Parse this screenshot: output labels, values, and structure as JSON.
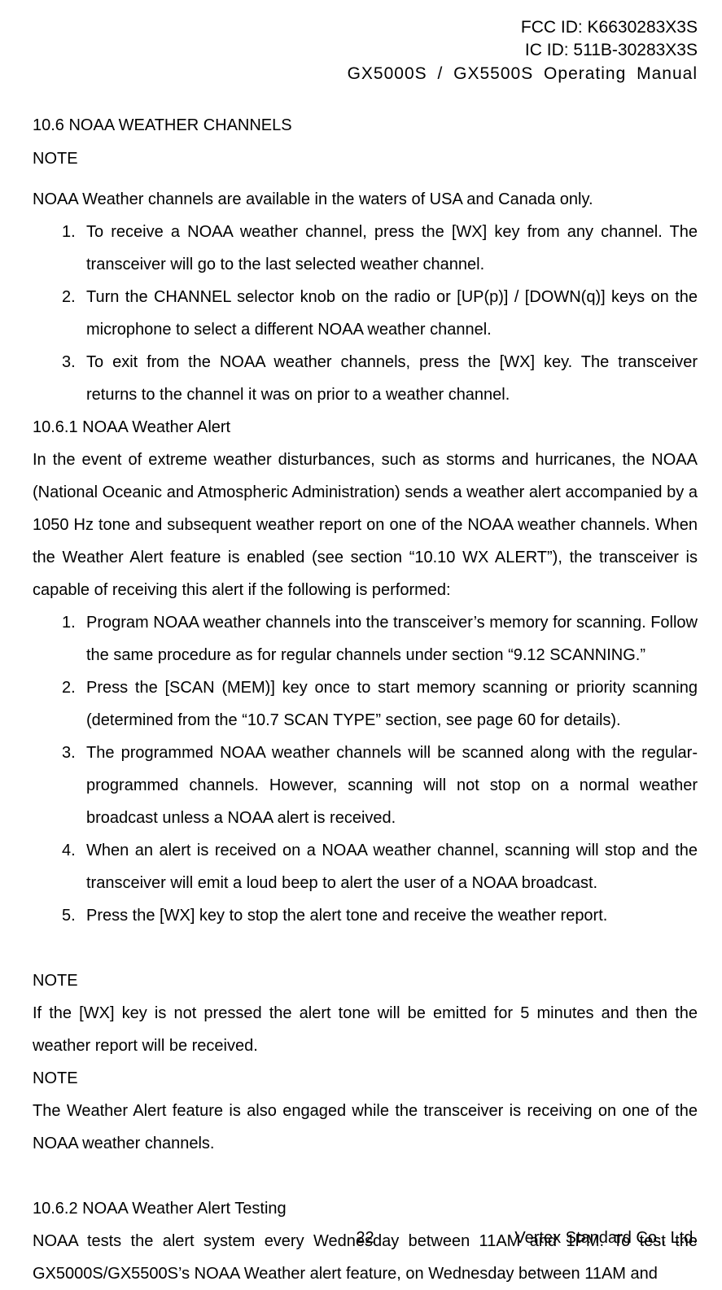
{
  "header": {
    "fcc_id": "FCC ID: K6630283X3S",
    "ic_id": "IC ID: 511B-30283X3S",
    "manual_title": "GX5000S  /  GX5500S    Operating  Manual"
  },
  "section": {
    "number_title": "10.6 NOAA WEATHER CHANNELS",
    "note1_label": "NOTE",
    "note1_text": "NOAA Weather channels are available in the waters of USA and Canada only.",
    "list1": {
      "items": [
        {
          "num": "1.",
          "text": "To receive a NOAA weather channel, press the [WX] key from any channel. The transceiver will go to the last selected weather channel."
        },
        {
          "num": "2.",
          "text": "Turn the CHANNEL selector knob on the radio or [UP(p)] / [DOWN(q)] keys on the microphone to select a different NOAA weather channel."
        },
        {
          "num": "3.",
          "text": "To exit from the NOAA weather channels, press the [WX] key. The transceiver returns to the channel it was on prior to a weather channel."
        }
      ]
    },
    "sub1_title": "10.6.1 NOAA Weather Alert",
    "sub1_para": "In the event of extreme weather disturbances, such as storms and hurricanes, the NOAA (National Oceanic and Atmospheric Administration) sends a weather alert accompanied by a 1050 Hz tone and subsequent weather report on one of the NOAA weather channels. When the Weather Alert feature is enabled (see section “10.10 WX ALERT”), the transceiver is capable of receiving this alert if the following is performed:",
    "list2": {
      "items": [
        {
          "num": "1.",
          "text": "Program NOAA weather channels into the transceiver’s memory for scanning. Follow the same procedure as for regular channels under section “9.12 SCANNING.”"
        },
        {
          "num": "2.",
          "text": "Press the [SCAN (MEM)] key once to start memory scanning or priority scanning (determined from the “10.7 SCAN TYPE” section, see page 60 for details)."
        },
        {
          "num": "3.",
          "text": "The programmed NOAA weather channels will be scanned along with the regular-programmed channels. However, scanning will not stop on a normal weather broadcast unless a NOAA alert is received."
        },
        {
          "num": "4.",
          "text": "When an alert is received on a NOAA weather channel, scanning will stop and the transceiver will emit a loud beep to alert the user of a NOAA broadcast."
        },
        {
          "num": "5.",
          "text": "Press the [WX] key to stop the alert tone and receive the weather report."
        }
      ]
    },
    "note2_label": "NOTE",
    "note2_text": "If the [WX] key is not pressed the alert tone will be emitted for 5 minutes and then the weather report will be received.",
    "note3_label": "NOTE",
    "note3_text": "The Weather Alert feature is also engaged while the transceiver is receiving on one of the NOAA weather channels.",
    "sub2_title": "10.6.2 NOAA Weather Alert Testing",
    "sub2_para": "NOAA tests the alert system every Wednesday between 11AM and 1PM. To test the GX5000S/GX5500S’s NOAA Weather alert feature, on Wednesday between 11AM and"
  },
  "footer": {
    "page": "22",
    "company": "Vertex Standard Co., Ltd."
  },
  "style": {
    "body_width": 887,
    "body_height": 1555,
    "background_color": "#ffffff",
    "text_color": "#000000",
    "font_family": "Arial",
    "base_fontsize": 20,
    "header_fontsize": 21,
    "line_height": 2.0,
    "text_align": "justify"
  }
}
